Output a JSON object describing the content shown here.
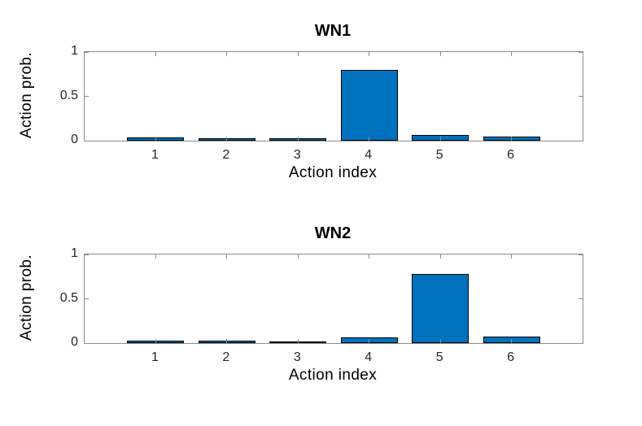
{
  "style": {
    "background": "#ffffff",
    "bar_color": "#0072BD",
    "bar_edge_color": "#000000",
    "axis_color": "#8c8c8c",
    "tick_text_color": "#262626",
    "label_text_color": "#000000"
  },
  "chart_data": [
    {
      "type": "bar",
      "title": "WN1",
      "xlabel": "Action index",
      "ylabel": "Action prob.",
      "categories": [
        "1",
        "2",
        "3",
        "4",
        "5",
        "6"
      ],
      "x": [
        1,
        2,
        3,
        4,
        5,
        6
      ],
      "values": [
        0.04,
        0.03,
        0.025,
        0.8,
        0.065,
        0.045
      ],
      "bar_width": 0.8,
      "xlim": [
        0,
        7
      ],
      "ylim": [
        0,
        1
      ],
      "yticks": [
        0,
        0.5,
        1
      ],
      "ytick_labels": [
        "0",
        "0.5",
        "1"
      ],
      "grid": false,
      "legend": "none",
      "box": true,
      "tick_dir": "in"
    },
    {
      "type": "bar",
      "title": "WN2",
      "xlabel": "Action index",
      "ylabel": "Action prob.",
      "categories": [
        "1",
        "2",
        "3",
        "4",
        "5",
        "6"
      ],
      "x": [
        1,
        2,
        3,
        4,
        5,
        6
      ],
      "values": [
        0.03,
        0.03,
        0.02,
        0.065,
        0.78,
        0.07
      ],
      "bar_width": 0.8,
      "xlim": [
        0,
        7
      ],
      "ylim": [
        0,
        1
      ],
      "yticks": [
        0,
        0.5,
        1
      ],
      "ytick_labels": [
        "0",
        "0.5",
        "1"
      ],
      "grid": false,
      "legend": "none",
      "box": true,
      "tick_dir": "in"
    }
  ]
}
